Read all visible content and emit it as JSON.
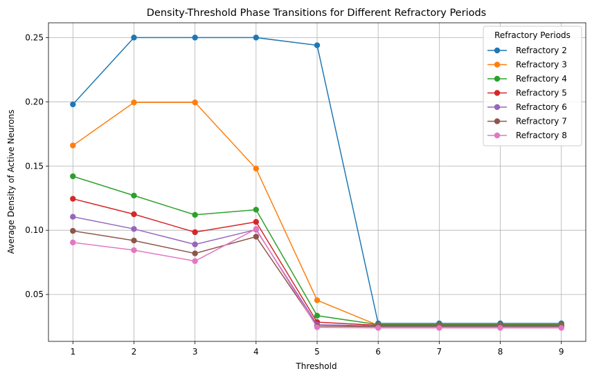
{
  "chart_data": {
    "type": "line",
    "title": "Density-Threshold Phase Transitions for Different Refractory Periods",
    "xlabel": "Threshold",
    "ylabel": "Average Density of Active Neurons",
    "x": [
      1,
      2,
      3,
      4,
      5,
      6,
      7,
      8,
      9
    ],
    "xlim": [
      0.6,
      9.4
    ],
    "ylim": [
      0.0135,
      0.2615
    ],
    "xticks": [
      1,
      2,
      3,
      4,
      5,
      6,
      7,
      8,
      9
    ],
    "yticks": [
      0.05,
      0.1,
      0.15,
      0.2,
      0.25
    ],
    "ytick_labels": [
      "0.05",
      "0.10",
      "0.15",
      "0.20",
      "0.25"
    ],
    "grid": true,
    "legend": {
      "title": "Refractory Periods",
      "placement": "top-right"
    },
    "series": [
      {
        "name": "Refractory 2",
        "color": "#1f77b4",
        "values": [
          0.198,
          0.25,
          0.25,
          0.25,
          0.244,
          0.0275,
          0.0275,
          0.0275,
          0.0275
        ]
      },
      {
        "name": "Refractory 3",
        "color": "#ff7f0e",
        "values": [
          0.166,
          0.1995,
          0.1995,
          0.148,
          0.0455,
          0.026,
          0.026,
          0.026,
          0.026
        ]
      },
      {
        "name": "Refractory 4",
        "color": "#2ca02c",
        "values": [
          0.142,
          0.127,
          0.112,
          0.116,
          0.0335,
          0.0265,
          0.0265,
          0.0265,
          0.0265
        ]
      },
      {
        "name": "Refractory 5",
        "color": "#d62728",
        "values": [
          0.1245,
          0.1125,
          0.0985,
          0.1065,
          0.0285,
          0.026,
          0.026,
          0.026,
          0.026
        ]
      },
      {
        "name": "Refractory 6",
        "color": "#9467bd",
        "values": [
          0.1105,
          0.101,
          0.089,
          0.1005,
          0.0265,
          0.0255,
          0.0255,
          0.0255,
          0.0255
        ]
      },
      {
        "name": "Refractory 7",
        "color": "#8c564b",
        "values": [
          0.0995,
          0.092,
          0.082,
          0.095,
          0.0255,
          0.025,
          0.025,
          0.025,
          0.025
        ]
      },
      {
        "name": "Refractory 8",
        "color": "#e377c2",
        "values": [
          0.0905,
          0.0845,
          0.076,
          0.101,
          0.0245,
          0.024,
          0.024,
          0.024,
          0.024
        ]
      }
    ]
  }
}
